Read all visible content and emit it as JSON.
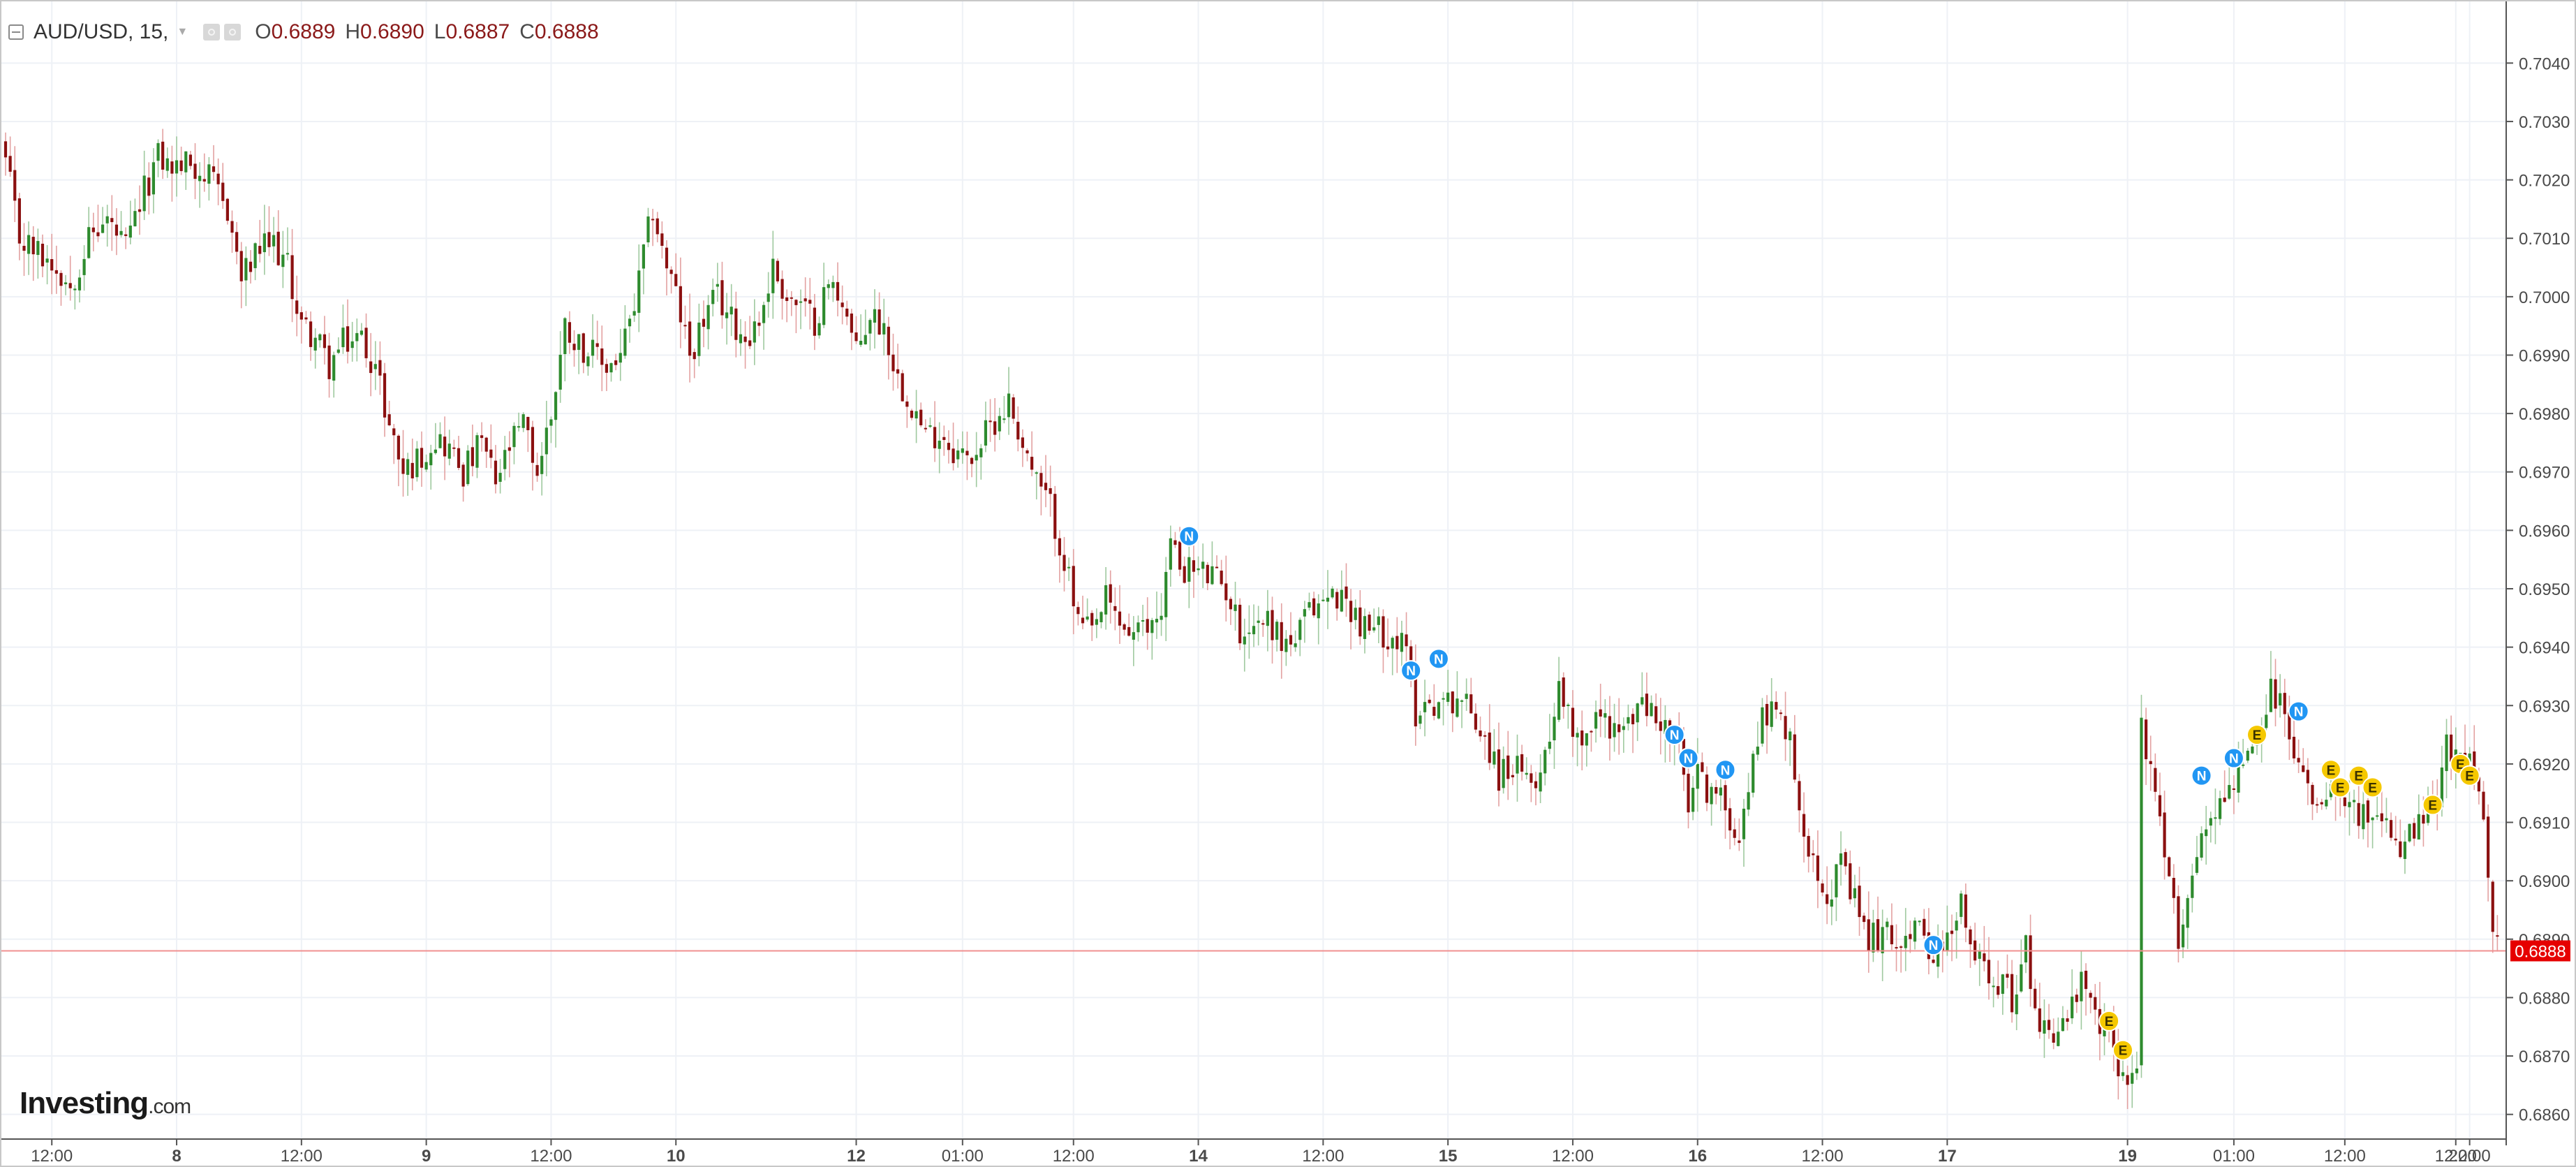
{
  "legend": {
    "symbol": "AUD/USD, 15,",
    "open_label": "O",
    "open": "0.6889",
    "high_label": "H",
    "high": "0.6890",
    "low_label": "L",
    "low": "0.6887",
    "close_label": "C",
    "close": "0.6888"
  },
  "logo": {
    "brand": "Investing",
    "tld": ".com"
  },
  "price_tag": "0.6888",
  "colors": {
    "up": "#2e8b2e",
    "down": "#8b1010",
    "grid": "#eef1f6",
    "price_line": "#f09090",
    "price_tag_bg": "#e60000",
    "event_N": "#2196f3",
    "event_E": "#f5c800"
  },
  "chart_data": {
    "type": "candlestick",
    "title": "AUD/USD, 15",
    "xlabel": "",
    "ylabel": "",
    "ylim": [
      0.6855,
      0.7045
    ],
    "grid": true,
    "y_ticks": [
      "0.7040",
      "0.7030",
      "0.7020",
      "0.7010",
      "0.7000",
      "0.6990",
      "0.6980",
      "0.6970",
      "0.6960",
      "0.6950",
      "0.6940",
      "0.6930",
      "0.6920",
      "0.6910",
      "0.6900",
      "0.6890",
      "0.6880",
      "0.6870",
      "0.6860"
    ],
    "x_ticks": [
      {
        "label": "12:00",
        "idx": 10
      },
      {
        "label": "8",
        "idx": 37
      },
      {
        "label": "12:00",
        "idx": 64
      },
      {
        "label": "9",
        "idx": 91
      },
      {
        "label": "12:00",
        "idx": 118
      },
      {
        "label": "10",
        "idx": 145
      },
      {
        "label": "12",
        "idx": 184
      },
      {
        "label": "01:00",
        "idx": 207
      },
      {
        "label": "12:00",
        "idx": 231
      },
      {
        "label": "14",
        "idx": 258
      },
      {
        "label": "12:00",
        "idx": 285
      },
      {
        "label": "15",
        "idx": 312
      },
      {
        "label": "12:00",
        "idx": 339
      },
      {
        "label": "16",
        "idx": 366
      },
      {
        "label": "12:00",
        "idx": 393
      },
      {
        "label": "17",
        "idx": 420
      },
      {
        "label": "19",
        "idx": 459
      },
      {
        "label": "01:00",
        "idx": 482
      },
      {
        "label": "12:00",
        "idx": 506
      },
      {
        "label": "12:00",
        "idx": 530
      },
      {
        "label": "22:00",
        "idx": 533
      }
    ],
    "close_path": [
      [
        0,
        0.7023
      ],
      [
        3,
        0.701
      ],
      [
        6,
        0.7008
      ],
      [
        10,
        0.7006
      ],
      [
        14,
        0.7002
      ],
      [
        18,
        0.701
      ],
      [
        22,
        0.7013
      ],
      [
        26,
        0.7008
      ],
      [
        30,
        0.7018
      ],
      [
        33,
        0.7024
      ],
      [
        36,
        0.7022
      ],
      [
        40,
        0.7023
      ],
      [
        44,
        0.702
      ],
      [
        48,
        0.7015
      ],
      [
        51,
        0.7003
      ],
      [
        55,
        0.7008
      ],
      [
        58,
        0.7009
      ],
      [
        61,
        0.7005
      ],
      [
        64,
        0.6995
      ],
      [
        67,
        0.6993
      ],
      [
        70,
        0.6988
      ],
      [
        73,
        0.6992
      ],
      [
        77,
        0.6993
      ],
      [
        80,
        0.6988
      ],
      [
        83,
        0.6978
      ],
      [
        86,
        0.697
      ],
      [
        89,
        0.6972
      ],
      [
        93,
        0.6976
      ],
      [
        96,
        0.6974
      ],
      [
        99,
        0.697
      ],
      [
        103,
        0.6975
      ],
      [
        106,
        0.6968
      ],
      [
        109,
        0.6974
      ],
      [
        112,
        0.6978
      ],
      [
        115,
        0.697
      ],
      [
        118,
        0.698
      ],
      [
        121,
        0.6995
      ],
      [
        124,
        0.6992
      ],
      [
        127,
        0.699
      ],
      [
        130,
        0.6988
      ],
      [
        133,
        0.699
      ],
      [
        136,
        0.6998
      ],
      [
        138,
        0.7007
      ],
      [
        140,
        0.7015
      ],
      [
        142,
        0.7008
      ],
      [
        145,
        0.7
      ],
      [
        148,
        0.699
      ],
      [
        151,
        0.6996
      ],
      [
        154,
        0.7
      ],
      [
        157,
        0.6996
      ],
      [
        160,
        0.6993
      ],
      [
        163,
        0.6996
      ],
      [
        166,
        0.7005
      ],
      [
        169,
        0.7
      ],
      [
        172,
        0.6998
      ],
      [
        175,
        0.6996
      ],
      [
        178,
        0.7002
      ],
      [
        181,
        0.7
      ],
      [
        184,
        0.699
      ],
      [
        187,
        0.6997
      ],
      [
        190,
        0.6995
      ],
      [
        193,
        0.6986
      ],
      [
        196,
        0.6982
      ],
      [
        199,
        0.6976
      ],
      [
        202,
        0.6977
      ],
      [
        205,
        0.6974
      ],
      [
        208,
        0.6972
      ],
      [
        211,
        0.6975
      ],
      [
        214,
        0.6979
      ],
      [
        217,
        0.6982
      ],
      [
        220,
        0.6975
      ],
      [
        223,
        0.6968
      ],
      [
        226,
        0.6964
      ],
      [
        229,
        0.6955
      ],
      [
        232,
        0.6944
      ],
      [
        235,
        0.6942
      ],
      [
        238,
        0.6948
      ],
      [
        241,
        0.6944
      ],
      [
        244,
        0.6942
      ],
      [
        247,
        0.6943
      ],
      [
        250,
        0.6947
      ],
      [
        252,
        0.6958
      ],
      [
        254,
        0.6954
      ],
      [
        258,
        0.6953
      ],
      [
        261,
        0.6952
      ],
      [
        264,
        0.695
      ],
      [
        267,
        0.6943
      ],
      [
        270,
        0.6944
      ],
      [
        273,
        0.6945
      ],
      [
        276,
        0.6941
      ],
      [
        279,
        0.6941
      ],
      [
        282,
        0.6946
      ],
      [
        285,
        0.6948
      ],
      [
        288,
        0.6949
      ],
      [
        291,
        0.6947
      ],
      [
        294,
        0.6943
      ],
      [
        297,
        0.6943
      ],
      [
        300,
        0.6942
      ],
      [
        303,
        0.6939
      ],
      [
        305,
        0.6929
      ],
      [
        308,
        0.6931
      ],
      [
        311,
        0.693
      ],
      [
        314,
        0.6932
      ],
      [
        317,
        0.6929
      ],
      [
        320,
        0.6925
      ],
      [
        323,
        0.6918
      ],
      [
        326,
        0.692
      ],
      [
        329,
        0.6916
      ],
      [
        332,
        0.6919
      ],
      [
        334,
        0.6925
      ],
      [
        336,
        0.6935
      ],
      [
        338,
        0.6928
      ],
      [
        341,
        0.6925
      ],
      [
        344,
        0.6928
      ],
      [
        347,
        0.6927
      ],
      [
        350,
        0.6925
      ],
      [
        353,
        0.693
      ],
      [
        356,
        0.6929
      ],
      [
        359,
        0.6926
      ],
      [
        362,
        0.6922
      ],
      [
        364,
        0.6912
      ],
      [
        366,
        0.6918
      ],
      [
        369,
        0.6915
      ],
      [
        372,
        0.6913
      ],
      [
        375,
        0.6908
      ],
      [
        378,
        0.692
      ],
      [
        380,
        0.693
      ],
      [
        383,
        0.6928
      ],
      [
        386,
        0.6926
      ],
      [
        388,
        0.691
      ],
      [
        391,
        0.6905
      ],
      [
        394,
        0.6898
      ],
      [
        397,
        0.6902
      ],
      [
        400,
        0.6896
      ],
      [
        403,
        0.689
      ],
      [
        406,
        0.6891
      ],
      [
        409,
        0.689
      ],
      [
        412,
        0.6892
      ],
      [
        415,
        0.689
      ],
      [
        418,
        0.6888
      ],
      [
        421,
        0.689
      ],
      [
        423,
        0.6896
      ],
      [
        425,
        0.6888
      ],
      [
        428,
        0.6886
      ],
      [
        431,
        0.6883
      ],
      [
        434,
        0.688
      ],
      [
        437,
        0.6888
      ],
      [
        440,
        0.6876
      ],
      [
        443,
        0.6874
      ],
      [
        446,
        0.6877
      ],
      [
        449,
        0.6882
      ],
      [
        452,
        0.6876
      ],
      [
        455,
        0.6873
      ],
      [
        458,
        0.6867
      ],
      [
        460,
        0.6866
      ],
      [
        461,
        0.6868
      ],
      [
        462,
        0.6928
      ],
      [
        464,
        0.6918
      ],
      [
        466,
        0.6909
      ],
      [
        468,
        0.6899
      ],
      [
        470,
        0.6891
      ],
      [
        472,
        0.6897
      ],
      [
        474,
        0.6905
      ],
      [
        477,
        0.6912
      ],
      [
        480,
        0.6914
      ],
      [
        483,
        0.6919
      ],
      [
        486,
        0.6921
      ],
      [
        488,
        0.6925
      ],
      [
        490,
        0.6933
      ],
      [
        492,
        0.693
      ],
      [
        494,
        0.6925
      ],
      [
        496,
        0.692
      ],
      [
        499,
        0.6914
      ],
      [
        502,
        0.6916
      ],
      [
        505,
        0.6917
      ],
      [
        508,
        0.6912
      ],
      [
        511,
        0.6911
      ],
      [
        514,
        0.6909
      ],
      [
        517,
        0.6906
      ],
      [
        520,
        0.6907
      ],
      [
        523,
        0.691
      ],
      [
        526,
        0.6912
      ],
      [
        528,
        0.6924
      ],
      [
        530,
        0.692
      ],
      [
        533,
        0.6921
      ],
      [
        535,
        0.6918
      ],
      [
        537,
        0.6898
      ],
      [
        539,
        0.6888
      ]
    ],
    "volatility": 0.00055,
    "events": [
      {
        "type": "N",
        "idx": 256,
        "y": 0.6959
      },
      {
        "type": "N",
        "idx": 304,
        "y": 0.6936
      },
      {
        "type": "N",
        "idx": 310,
        "y": 0.6938
      },
      {
        "type": "N",
        "idx": 361,
        "y": 0.6925
      },
      {
        "type": "N",
        "idx": 364,
        "y": 0.6921
      },
      {
        "type": "N",
        "idx": 372,
        "y": 0.6919
      },
      {
        "type": "N",
        "idx": 417,
        "y": 0.6889
      },
      {
        "type": "E",
        "idx": 455,
        "y": 0.6876
      },
      {
        "type": "E",
        "idx": 458,
        "y": 0.6871
      },
      {
        "type": "N",
        "idx": 475,
        "y": 0.6918
      },
      {
        "type": "N",
        "idx": 482,
        "y": 0.6921
      },
      {
        "type": "E",
        "idx": 487,
        "y": 0.6925
      },
      {
        "type": "N",
        "idx": 496,
        "y": 0.6929
      },
      {
        "type": "E",
        "idx": 503,
        "y": 0.6919
      },
      {
        "type": "E",
        "idx": 505,
        "y": 0.6916
      },
      {
        "type": "E",
        "idx": 509,
        "y": 0.6918
      },
      {
        "type": "E",
        "idx": 512,
        "y": 0.6916
      },
      {
        "type": "E",
        "idx": 525,
        "y": 0.6913
      },
      {
        "type": "E",
        "idx": 531,
        "y": 0.692
      },
      {
        "type": "E",
        "idx": 533,
        "y": 0.6918
      }
    ],
    "last_price": 0.6888
  }
}
